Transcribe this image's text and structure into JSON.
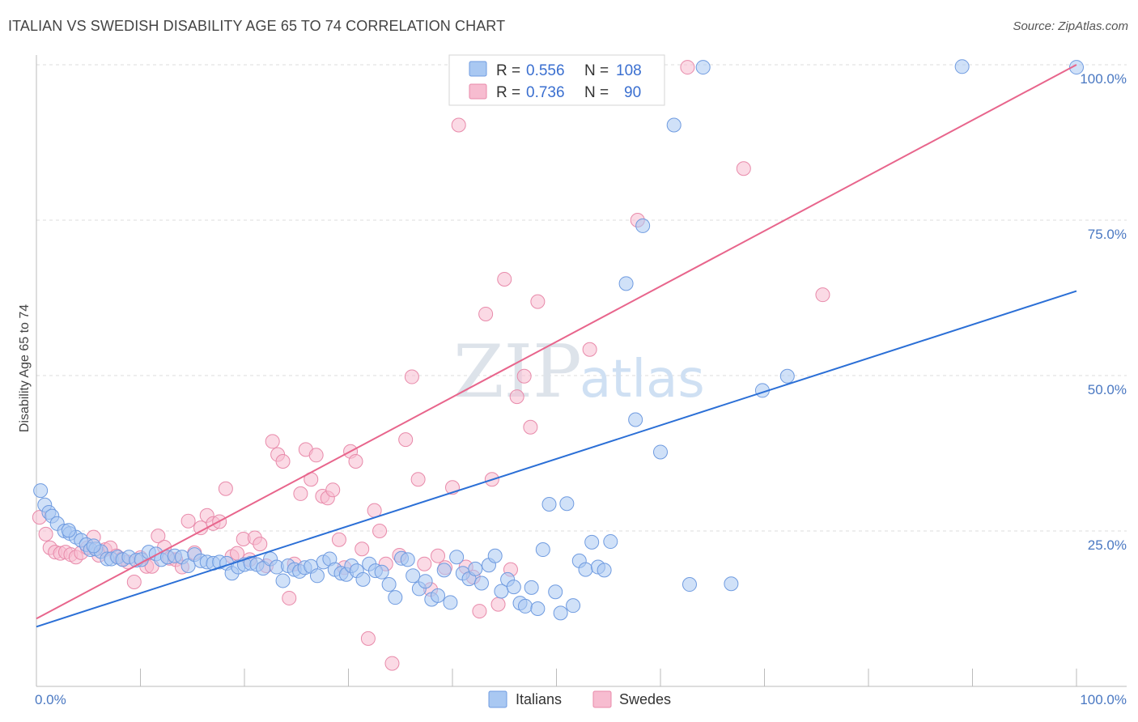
{
  "title": "ITALIAN VS SWEDISH DISABILITY AGE 65 TO 74 CORRELATION CHART",
  "source": "Source: ZipAtlas.com",
  "watermark": {
    "zip": "ZIP",
    "atlas": "atlas"
  },
  "legend": {
    "r_label": "R =",
    "n_label": "N =",
    "rows": [
      {
        "name": "Italians",
        "r": "0.556",
        "n": "108",
        "color": "#a9c8f2",
        "stroke": "#6f9be0"
      },
      {
        "name": "Swedes",
        "r": "0.736",
        "n": "90",
        "color": "#f7bcd0",
        "stroke": "#e88aaa"
      }
    ]
  },
  "colors": {
    "blue_line": "#2b6fd6",
    "pink_line": "#e8658c",
    "grid": "#dddddd"
  },
  "chart_data": {
    "type": "scatter",
    "ylabel": "Disability Age 65 to 74",
    "xlim": [
      0,
      100
    ],
    "ylim": [
      0,
      100
    ],
    "x_tick_labels": [
      "0.0%",
      "100.0%"
    ],
    "y_tick_labels": [
      "25.0%",
      "50.0%",
      "75.0%",
      "100.0%"
    ],
    "y_ticks": [
      25,
      50,
      75,
      100
    ],
    "grid": true,
    "series": [
      {
        "name": "Italians",
        "trendline": {
          "x": [
            0,
            100
          ],
          "y": [
            9.6,
            63.6
          ]
        },
        "points": [
          [
            0.4,
            31.5
          ],
          [
            0.8,
            29.2
          ],
          [
            1.2,
            28
          ],
          [
            1.5,
            27.4
          ],
          [
            2,
            26.2
          ],
          [
            2.7,
            25
          ],
          [
            3.2,
            24.6
          ],
          [
            3.8,
            24
          ],
          [
            4.3,
            23.5
          ],
          [
            4.8,
            22.8
          ],
          [
            5.2,
            22
          ],
          [
            5.7,
            22.1
          ],
          [
            6.2,
            21.7
          ],
          [
            6.8,
            20.5
          ],
          [
            7.2,
            20.5
          ],
          [
            7.8,
            20.8
          ],
          [
            8.3,
            20.4
          ],
          [
            8.9,
            20.8
          ],
          [
            9.6,
            20.3
          ],
          [
            10.1,
            20.4
          ],
          [
            10.8,
            21.6
          ],
          [
            11.5,
            21.3
          ],
          [
            12,
            20.4
          ],
          [
            12.6,
            20.8
          ],
          [
            13.3,
            21
          ],
          [
            14,
            20.8
          ],
          [
            14.6,
            19.4
          ],
          [
            15.2,
            21.2
          ],
          [
            15.8,
            20.2
          ],
          [
            16.4,
            20
          ],
          [
            17,
            19.8
          ],
          [
            17.6,
            20
          ],
          [
            18.3,
            19.8
          ],
          [
            18.8,
            18.2
          ],
          [
            19.4,
            19.2
          ],
          [
            20,
            19.6
          ],
          [
            20.6,
            19.8
          ],
          [
            21.2,
            19.6
          ],
          [
            21.8,
            19
          ],
          [
            22.5,
            20.5
          ],
          [
            23.1,
            19.2
          ],
          [
            23.7,
            17
          ],
          [
            24.2,
            19.4
          ],
          [
            24.8,
            18.8
          ],
          [
            25.3,
            18.5
          ],
          [
            25.8,
            19.1
          ],
          [
            26.4,
            19.3
          ],
          [
            27,
            17.8
          ],
          [
            27.6,
            20
          ],
          [
            28.2,
            20.5
          ],
          [
            28.7,
            18.8
          ],
          [
            29.3,
            18.2
          ],
          [
            29.8,
            18
          ],
          [
            30.3,
            19.4
          ],
          [
            30.8,
            18.6
          ],
          [
            31.4,
            17.2
          ],
          [
            32,
            19.7
          ],
          [
            32.6,
            18.6
          ],
          [
            33.2,
            18.4
          ],
          [
            33.9,
            16.4
          ],
          [
            34.5,
            14.3
          ],
          [
            35.1,
            20.6
          ],
          [
            35.7,
            20.4
          ],
          [
            36.2,
            17.8
          ],
          [
            36.8,
            15.7
          ],
          [
            37.4,
            16.9
          ],
          [
            38,
            14
          ],
          [
            38.6,
            14.6
          ],
          [
            39.2,
            18.7
          ],
          [
            39.8,
            13.5
          ],
          [
            40.4,
            20.8
          ],
          [
            41,
            18.2
          ],
          [
            41.6,
            17.3
          ],
          [
            42.2,
            18.9
          ],
          [
            42.8,
            16.6
          ],
          [
            43.5,
            19.5
          ],
          [
            44.1,
            21
          ],
          [
            44.7,
            15.3
          ],
          [
            45.3,
            17.2
          ],
          [
            45.9,
            16
          ],
          [
            46.5,
            13.4
          ],
          [
            47,
            12.9
          ],
          [
            47.6,
            15.9
          ],
          [
            48.2,
            12.5
          ],
          [
            48.7,
            22
          ],
          [
            49.3,
            29.3
          ],
          [
            49.9,
            15.2
          ],
          [
            50.4,
            11.8
          ],
          [
            51,
            29.4
          ],
          [
            51.6,
            13
          ],
          [
            52.2,
            20.2
          ],
          [
            52.8,
            18.8
          ],
          [
            53.4,
            23.2
          ],
          [
            54,
            19.2
          ],
          [
            54.6,
            18.7
          ],
          [
            55.2,
            23.3
          ],
          [
            56.7,
            64.8
          ],
          [
            57.6,
            42.9
          ],
          [
            58.3,
            74.1
          ],
          [
            60,
            37.7
          ],
          [
            61.3,
            90.3
          ],
          [
            62.8,
            16.4
          ],
          [
            64.1,
            99.6
          ],
          [
            66.8,
            16.5
          ],
          [
            69.8,
            47.6
          ],
          [
            72.2,
            49.9
          ],
          [
            89,
            99.7
          ],
          [
            100,
            99.6
          ],
          [
            5.5,
            22.6
          ],
          [
            3.1,
            25.1
          ]
        ]
      },
      {
        "name": "Swedes",
        "trendline": {
          "x": [
            0,
            100
          ],
          "y": [
            10.9,
            100
          ]
        },
        "points": [
          [
            0.3,
            27.2
          ],
          [
            0.9,
            24.5
          ],
          [
            1.3,
            22.3
          ],
          [
            1.8,
            21.6
          ],
          [
            2.3,
            21.4
          ],
          [
            2.8,
            21.6
          ],
          [
            3.3,
            21.2
          ],
          [
            3.8,
            20.8
          ],
          [
            4.3,
            21.5
          ],
          [
            4.9,
            22.3
          ],
          [
            5.5,
            24
          ],
          [
            6,
            21.1
          ],
          [
            6.6,
            22
          ],
          [
            7.1,
            22.3
          ],
          [
            7.7,
            21
          ],
          [
            8.2,
            20.5
          ],
          [
            8.8,
            20
          ],
          [
            9.4,
            16.8
          ],
          [
            10,
            20.7
          ],
          [
            10.6,
            19.3
          ],
          [
            11.1,
            19.3
          ],
          [
            11.7,
            24.2
          ],
          [
            12.3,
            22.4
          ],
          [
            12.8,
            20.6
          ],
          [
            13.4,
            20.4
          ],
          [
            14,
            19.2
          ],
          [
            14.6,
            26.6
          ],
          [
            15.2,
            21.5
          ],
          [
            15.8,
            25.5
          ],
          [
            16.4,
            27.5
          ],
          [
            17,
            26.2
          ],
          [
            17.6,
            26.5
          ],
          [
            18.2,
            31.8
          ],
          [
            18.8,
            20.9
          ],
          [
            19.3,
            21.4
          ],
          [
            19.9,
            23.7
          ],
          [
            20.5,
            20.4
          ],
          [
            21,
            23.9
          ],
          [
            21.5,
            22.9
          ],
          [
            22.1,
            19.4
          ],
          [
            22.7,
            39.4
          ],
          [
            23.2,
            37.3
          ],
          [
            23.7,
            36.2
          ],
          [
            24.3,
            14.2
          ],
          [
            24.8,
            19.7
          ],
          [
            25.4,
            31
          ],
          [
            25.9,
            38.1
          ],
          [
            26.4,
            33.3
          ],
          [
            26.9,
            37.2
          ],
          [
            27.5,
            30.6
          ],
          [
            28,
            30.3
          ],
          [
            28.5,
            31.6
          ],
          [
            29.1,
            23.6
          ],
          [
            29.6,
            19.1
          ],
          [
            30.2,
            37.8
          ],
          [
            30.7,
            36.2
          ],
          [
            31.3,
            22.1
          ],
          [
            31.9,
            7.7
          ],
          [
            32.5,
            28.3
          ],
          [
            33,
            25
          ],
          [
            33.6,
            19.7
          ],
          [
            34.2,
            3.7
          ],
          [
            34.9,
            21.1
          ],
          [
            35.5,
            39.7
          ],
          [
            36.1,
            49.8
          ],
          [
            36.7,
            33.3
          ],
          [
            37.3,
            19.7
          ],
          [
            37.9,
            15.6
          ],
          [
            38.6,
            21
          ],
          [
            39.3,
            19.1
          ],
          [
            40,
            32
          ],
          [
            40.6,
            90.3
          ],
          [
            41.3,
            19.2
          ],
          [
            42,
            17.6
          ],
          [
            42.6,
            12.1
          ],
          [
            43.2,
            59.9
          ],
          [
            43.8,
            33.3
          ],
          [
            44.4,
            13.2
          ],
          [
            45,
            65.5
          ],
          [
            45.6,
            18.8
          ],
          [
            46.2,
            46.6
          ],
          [
            46.9,
            49.9
          ],
          [
            47.5,
            41.7
          ],
          [
            48.2,
            61.9
          ],
          [
            53.2,
            54.2
          ],
          [
            57.8,
            75
          ],
          [
            68,
            83.3
          ],
          [
            75.6,
            63
          ],
          [
            62.6,
            99.6
          ],
          [
            53.7,
            99.4
          ]
        ]
      }
    ]
  }
}
